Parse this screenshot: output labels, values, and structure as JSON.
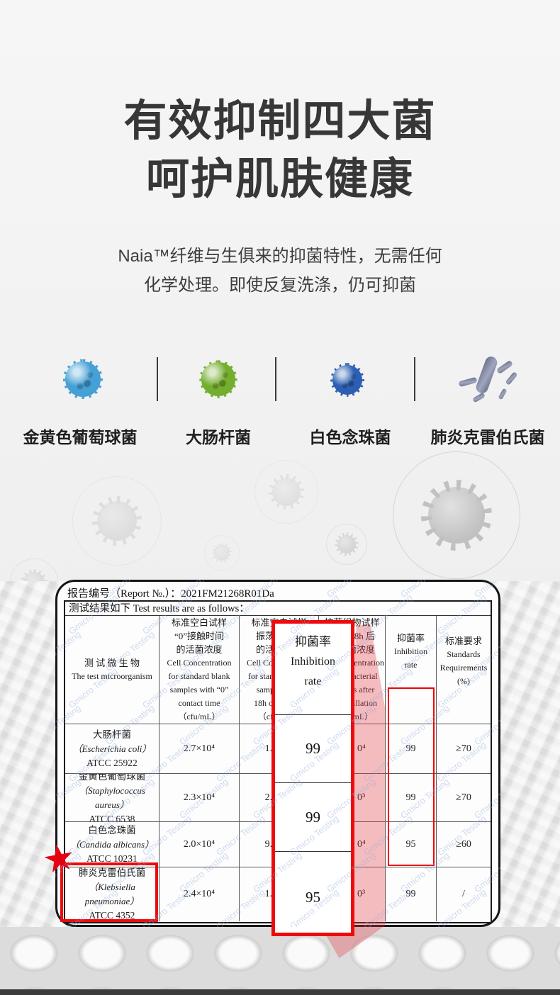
{
  "hero": {
    "title_line1": "有效抑制四大菌",
    "title_line2": "呵护肌肤健康",
    "subtitle_line1": "Naia™纤维与生俱来的抑菌特性，无需任何",
    "subtitle_line2": "化学处理。即使反复洗涤，仍可抑菌"
  },
  "bacteria": {
    "items": [
      {
        "label": "金黄色葡萄球菌",
        "color": "#45a0d6"
      },
      {
        "label": "大肠杆菌",
        "color": "#74ae2e"
      },
      {
        "label": "白色念珠菌",
        "color": "#2c5fb3"
      },
      {
        "label": "肺炎克雷伯氏菌",
        "color": "#5d6583"
      }
    ]
  },
  "report": {
    "report_no_label": "报告编号（Report №.）：",
    "report_no": "2021FM21268R01Da",
    "results_line": "测试结果如下 Test results are as follows：",
    "watermark": "Gmicro Testing",
    "watermark_color": "#8fa9d9",
    "accent_red": "#e8000d",
    "star_glyph": "★",
    "columns": {
      "microorganism_cn": "测 试 微 生 物",
      "microorganism_en": "The test microorganism",
      "blank0_cn": "标准空白试样\n“0”接触时间\n的活菌浓度",
      "blank0_en": "Cell Concentration\nfor standard blank\nsamples with “0”\ncontact time\n（cfu/mL）",
      "blank18_cn": "标准空白试样\n振荡 18h 后\n的活菌浓度",
      "blank18_en": "Cell Concentration\nfor standard blank\nsamples after\n18h oscillation\n（cfu/mL）",
      "fabric18_cn": "抗菌织物试样\n振荡 18h 后\n的活菌浓度",
      "fabric18_en": "Cell Concentration\nof antibacterial\nsamples after\n18h oscillation\n（cfu/mL）",
      "inhibition_cn": "抑菌率",
      "inhibition_en": "Inhibition\nrate",
      "standards_cn": "标准要求",
      "standards_en": "Standards\nRequirements\n(%)"
    },
    "rows": [
      {
        "name_cn": "大肠杆菌",
        "name_latin": "（Escherichia coli）",
        "atcc": "ATCC 25922",
        "blank0": "2.7×10⁴",
        "blank18_fragment": "1.2×",
        "fabric18_fragment": "0⁴",
        "inhibition": "99",
        "standard": "≥70"
      },
      {
        "name_cn": "金黄色葡萄球菌",
        "name_latin": "（Staphylococcus\naureus）",
        "atcc": "ATCC 6538",
        "blank0": "2.3×10⁴",
        "blank18_fragment": "2.9×",
        "fabric18_fragment": "0³",
        "inhibition": "99",
        "standard": "≥70"
      },
      {
        "name_cn": "白色念珠菌",
        "name_latin": "（Candida albicans）",
        "atcc": "ATCC 10231",
        "blank0": "2.0×10⁴",
        "blank18_fragment": "9.3×",
        "fabric18_fragment": "0⁴",
        "inhibition": "95",
        "standard": "≥60"
      },
      {
        "name_cn": "肺炎克雷伯氏菌",
        "name_latin": "（Klebsiella\npneumoniae）",
        "atcc": "ATCC 4352",
        "blank0": "2.4×10⁴",
        "blank18_fragment": "1.6×",
        "fabric18_fragment": "0³",
        "inhibition": "99",
        "standard": "/"
      }
    ],
    "callout": {
      "header_cn": "抑菌率",
      "header_en": "Inhibition\nrate",
      "values": [
        "99",
        "99",
        "95"
      ]
    }
  }
}
